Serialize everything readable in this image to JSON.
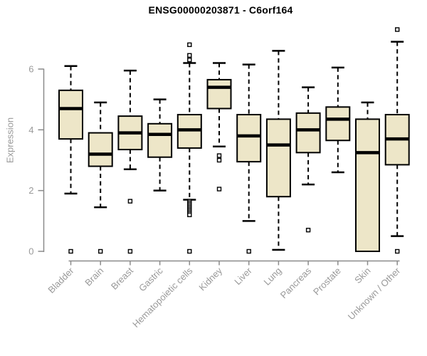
{
  "page": {
    "background": "#ffffff"
  },
  "chart_data": {
    "type": "boxplot",
    "title": "ENSG00000203871 - C6orf164",
    "ylabel": "Expression",
    "xlabel": "",
    "ylim": [
      0,
      7.4
    ],
    "yticks": [
      0,
      2,
      4,
      6
    ],
    "grid": false,
    "legend": false,
    "categories": [
      "Bladder",
      "Brain",
      "Breast",
      "Gastric",
      "Hematopoietic cells",
      "Kidney",
      "Liver",
      "Lung",
      "Pancreas",
      "Prostate",
      "Skin",
      "Unknown / Other"
    ],
    "series": [
      {
        "category": "Bladder",
        "whisker_low": 1.9,
        "q1": 3.7,
        "median": 4.7,
        "q3": 5.3,
        "whisker_high": 6.1,
        "outliers": [
          0
        ]
      },
      {
        "category": "Brain",
        "whisker_low": 1.45,
        "q1": 2.8,
        "median": 3.2,
        "q3": 3.9,
        "whisker_high": 4.9,
        "outliers": [
          0
        ]
      },
      {
        "category": "Breast",
        "whisker_low": 2.7,
        "q1": 3.35,
        "median": 3.9,
        "q3": 4.45,
        "whisker_high": 5.95,
        "outliers": [
          1.65,
          0
        ]
      },
      {
        "category": "Gastric",
        "whisker_low": 2.0,
        "q1": 3.1,
        "median": 3.85,
        "q3": 4.2,
        "whisker_high": 5.0,
        "outliers": []
      },
      {
        "category": "Hematopoietic cells",
        "whisker_low": 1.7,
        "q1": 3.4,
        "median": 4.0,
        "q3": 4.5,
        "whisker_high": 6.2,
        "outliers": [
          6.8,
          6.45,
          6.3,
          1.65,
          1.6,
          1.55,
          1.5,
          1.45,
          1.4,
          1.35,
          1.3,
          1.25,
          1.2,
          0
        ]
      },
      {
        "category": "Kidney",
        "whisker_low": 3.45,
        "q1": 4.7,
        "median": 5.4,
        "q3": 5.65,
        "whisker_high": 6.2,
        "outliers": [
          3.15,
          3.0,
          2.05
        ]
      },
      {
        "category": "Liver",
        "whisker_low": 1.0,
        "q1": 2.95,
        "median": 3.8,
        "q3": 4.5,
        "whisker_high": 6.15,
        "outliers": [
          0
        ]
      },
      {
        "category": "Lung",
        "whisker_low": 0.05,
        "q1": 1.8,
        "median": 3.5,
        "q3": 4.35,
        "whisker_high": 6.6,
        "outliers": []
      },
      {
        "category": "Pancreas",
        "whisker_low": 2.2,
        "q1": 3.25,
        "median": 4.0,
        "q3": 4.55,
        "whisker_high": 5.4,
        "outliers": [
          0.7
        ]
      },
      {
        "category": "Prostate",
        "whisker_low": 2.6,
        "q1": 3.65,
        "median": 4.35,
        "q3": 4.75,
        "whisker_high": 6.05,
        "outliers": []
      },
      {
        "category": "Skin",
        "whisker_low": 0,
        "q1": 0,
        "median": 3.25,
        "q3": 4.35,
        "whisker_high": 4.9,
        "outliers": []
      },
      {
        "category": "Unknown / Other",
        "whisker_low": 0.5,
        "q1": 2.85,
        "median": 3.7,
        "q3": 4.5,
        "whisker_high": 6.9,
        "outliers": [
          7.3,
          0
        ]
      }
    ],
    "colors": {
      "box_fill": "#EDE6C8",
      "box_border": "#000000",
      "median": "#000000",
      "whisker": "#000000",
      "outlier_fill": "#ffffff",
      "outlier_border": "#000000",
      "axis": "#8b8b8b",
      "tick_label": "#999999",
      "title": "#000000"
    }
  }
}
